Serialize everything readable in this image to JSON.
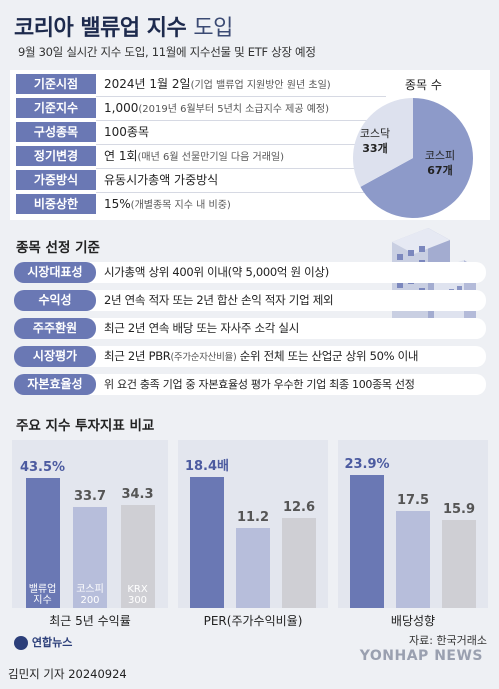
{
  "title": {
    "main": "코리아 밸류업 지수",
    "suffix": "도입"
  },
  "subtitle": "9월 30일 실시간 지수 도입, 11월에 지수선물 및 ETF 상장 예정",
  "info": [
    {
      "label": "기준시점",
      "value": "2024년 1월 2일",
      "note": "(기업 밸류업 지원방안 원년 초일)"
    },
    {
      "label": "기준지수",
      "value": "1,000",
      "note": "(2019년 6월부터 5년치 소급지수 제공 예정)"
    },
    {
      "label": "구성종목",
      "value": "100종목",
      "note": ""
    },
    {
      "label": "정기변경",
      "value": "연 1회",
      "note": "(매년 6월 선물만기일 다음 거래일)"
    },
    {
      "label": "가중방식",
      "value": "유동시가총액 가중방식",
      "note": ""
    },
    {
      "label": "비중상한",
      "value": "15%",
      "note": "(개별종목 지수 내 비중)"
    }
  ],
  "pie": {
    "title": "종목 수",
    "slices": [
      {
        "name": "코스피",
        "value": 67,
        "display": "67개",
        "color": "#8d9ac9"
      },
      {
        "name": "코스닥",
        "value": 33,
        "display": "33개",
        "color": "#dde1ee"
      }
    ]
  },
  "criteria_title": "종목 선정 기준",
  "criteria": [
    {
      "label": "시장대표성",
      "value": "시가총액 상위 400위 이내(약 5,000억 원 이상)",
      "note": ""
    },
    {
      "label": "수익성",
      "value": "2년 연속 적자 또는 2년 합산 손익 적자 기업 제외",
      "note": ""
    },
    {
      "label": "주주환원",
      "value": "최근 2년 연속 배당 또는 자사주 소각 실시",
      "note": ""
    },
    {
      "label": "시장평가",
      "value": "최근 2년 PBR",
      "note": "(주가순자산비율)",
      "value2": " 순위 전체 또는 산업군 상위 50% 이내"
    },
    {
      "label": "자본효율성",
      "value": "위 요건 충족 기업 중 자본효율성 평가 우수한 기업 최종 100종목 선정",
      "note": ""
    }
  ],
  "chart_title": "주요 지수 투자지표 비교",
  "chart_data": [
    {
      "type": "bar",
      "title": "최근 5년 수익률",
      "categories": [
        "밸류업 지수",
        "코스피 200",
        "KRX 300"
      ],
      "values": [
        43.5,
        33.7,
        34.3
      ],
      "labels": [
        "43.5%",
        "33.7",
        "34.3"
      ],
      "ylim": [
        0,
        50
      ]
    },
    {
      "type": "bar",
      "title": "PER(주가수익비율)",
      "categories": [
        "밸류업 지수",
        "코스피 200",
        "KRX 300"
      ],
      "values": [
        18.4,
        11.2,
        12.6
      ],
      "labels": [
        "18.4배",
        "11.2",
        "12.6"
      ],
      "ylim": [
        0,
        21
      ]
    },
    {
      "type": "bar",
      "title": "배당성향",
      "categories": [
        "밸류업 지수",
        "코스피 200",
        "KRX 300"
      ],
      "values": [
        23.9,
        17.5,
        15.9
      ],
      "labels": [
        "23.9%",
        "17.5",
        "15.9"
      ],
      "ylim": [
        0,
        27
      ]
    }
  ],
  "bar_inlabels": [
    "밸류업\n지수",
    "코스피\n200",
    "KRX\n300"
  ],
  "bar_colors": [
    "#6a78b4",
    "#b7bedb",
    "#cfcfd4"
  ],
  "source": "자료: 한국거래소",
  "logo": "연합뉴스",
  "reporter": "김민지 기자  20240924",
  "watermark": "YONHAP NEWS"
}
